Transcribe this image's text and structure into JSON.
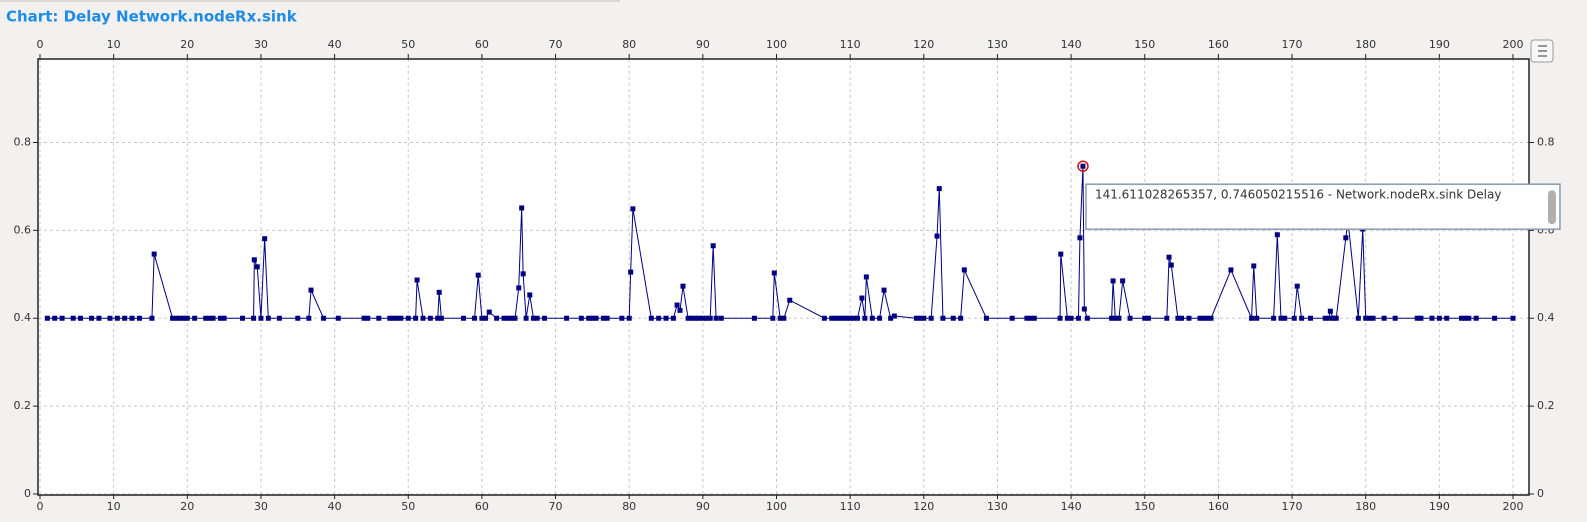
{
  "chart_data": {
    "type": "line",
    "title": "Chart: Delay Network.nodeRx.sink",
    "annotation": "141.611028265357, 0.746050215516 - Network.nodeRx.sink Delay",
    "color": "#000080",
    "grid": true,
    "xlim": [
      0,
      202
    ],
    "ylim": [
      0,
      0.99
    ],
    "xticks": [
      0,
      10,
      20,
      30,
      40,
      50,
      60,
      70,
      80,
      90,
      100,
      110,
      120,
      130,
      140,
      150,
      160,
      170,
      180,
      190,
      200
    ],
    "yticks": [
      0,
      0.2,
      0.4,
      0.6,
      0.8
    ],
    "x": [
      1,
      2,
      3,
      4.5,
      5.5,
      7,
      8,
      9.5,
      10.5,
      11.5,
      12.5,
      13.5,
      15.2,
      15.5,
      18,
      18.5,
      19,
      19.5,
      20,
      21,
      22.5,
      23,
      23.5,
      24.5,
      25,
      27.5,
      29,
      29.1,
      29.5,
      30,
      30.5,
      31,
      32.5,
      35,
      36.5,
      36.8,
      38.5,
      40.5,
      44,
      44.5,
      46,
      47.5,
      48,
      48.5,
      49,
      50,
      51,
      51.2,
      52,
      53,
      54,
      54.2,
      54.5,
      57.5,
      59,
      59.5,
      60,
      60.5,
      61,
      62,
      63,
      63.5,
      64,
      64.5,
      65,
      65.4,
      65.6,
      66,
      66.5,
      67,
      67.5,
      68.5,
      71.5,
      73.5,
      74.5,
      75,
      75.5,
      76.5,
      77,
      79,
      80,
      80.2,
      80.5,
      83,
      84,
      85,
      86,
      86.5,
      86.9,
      87.3,
      88,
      88.5,
      89,
      89.5,
      90,
      90.5,
      91,
      91.4,
      91.8,
      92.5,
      97,
      99.5,
      99.7,
      100.5,
      101,
      101.8,
      106.5,
      107.5,
      108,
      108.5,
      109,
      109.5,
      110,
      110.5,
      111,
      111.6,
      112,
      112.2,
      113,
      114,
      114.6,
      115.5,
      116,
      119,
      119.5,
      120,
      121,
      121.8,
      122.1,
      122.6,
      124,
      125,
      125.5,
      128.5,
      132,
      134,
      134.5,
      135,
      138.5,
      138.6,
      139.5,
      140,
      141,
      141.2,
      141.611028265357,
      141.8,
      142.2,
      145.5,
      145.7,
      146,
      146.5,
      147,
      148,
      150,
      150.5,
      153,
      153.3,
      153.6,
      154.5,
      155,
      156,
      157.5,
      158,
      158.5,
      159,
      161.7,
      164.5,
      164.8,
      165.2,
      167.5,
      168,
      168.5,
      169,
      170.3,
      170.7,
      171.3,
      172.5,
      174.5,
      175,
      175.2,
      175.6,
      176,
      177.3,
      177.6,
      179,
      179.6,
      180,
      180.5,
      181,
      182.5,
      184,
      187,
      187.5,
      189,
      190,
      191,
      193,
      193.5,
      194,
      195,
      197.5,
      200
    ],
    "values": [
      0.4,
      0.4,
      0.4,
      0.4,
      0.4,
      0.4,
      0.4,
      0.4,
      0.4,
      0.4,
      0.4,
      0.4,
      0.4,
      0.546,
      0.4,
      0.4,
      0.4,
      0.4,
      0.4,
      0.4,
      0.4,
      0.4,
      0.4,
      0.4,
      0.4,
      0.4,
      0.4,
      0.533,
      0.517,
      0.4,
      0.581,
      0.4,
      0.4,
      0.4,
      0.4,
      0.464,
      0.4,
      0.4,
      0.4,
      0.4,
      0.4,
      0.4,
      0.4,
      0.4,
      0.4,
      0.4,
      0.4,
      0.487,
      0.4,
      0.4,
      0.4,
      0.459,
      0.4,
      0.4,
      0.4,
      0.498,
      0.4,
      0.4,
      0.414,
      0.4,
      0.4,
      0.4,
      0.4,
      0.4,
      0.469,
      0.651,
      0.501,
      0.4,
      0.453,
      0.4,
      0.4,
      0.4,
      0.4,
      0.4,
      0.4,
      0.4,
      0.4,
      0.4,
      0.4,
      0.4,
      0.4,
      0.505,
      0.649,
      0.4,
      0.4,
      0.4,
      0.4,
      0.43,
      0.418,
      0.473,
      0.4,
      0.4,
      0.4,
      0.4,
      0.4,
      0.4,
      0.4,
      0.565,
      0.4,
      0.4,
      0.4,
      0.4,
      0.503,
      0.4,
      0.4,
      0.441,
      0.4,
      0.4,
      0.4,
      0.4,
      0.4,
      0.4,
      0.4,
      0.4,
      0.4,
      0.446,
      0.4,
      0.494,
      0.4,
      0.4,
      0.464,
      0.4,
      0.405,
      0.4,
      0.4,
      0.4,
      0.4,
      0.587,
      0.695,
      0.4,
      0.4,
      0.4,
      0.51,
      0.4,
      0.4,
      0.4,
      0.4,
      0.4,
      0.4,
      0.546,
      0.4,
      0.4,
      0.4,
      0.583,
      0.746050215516,
      0.421,
      0.4,
      0.4,
      0.485,
      0.4,
      0.4,
      0.485,
      0.4,
      0.4,
      0.4,
      0.4,
      0.539,
      0.521,
      0.4,
      0.4,
      0.4,
      0.4,
      0.4,
      0.4,
      0.4,
      0.51,
      0.4,
      0.519,
      0.4,
      0.4,
      0.59,
      0.4,
      0.4,
      0.4,
      0.473,
      0.4,
      0.4,
      0.4,
      0.4,
      0.416,
      0.4,
      0.4,
      0.583,
      0.62,
      0.4,
      0.603,
      0.4,
      0.4,
      0.4,
      0.4,
      0.4,
      0.4,
      0.4,
      0.4,
      0.4,
      0.4,
      0.4,
      0.4,
      0.4,
      0.4,
      0.4,
      0.4
    ]
  }
}
